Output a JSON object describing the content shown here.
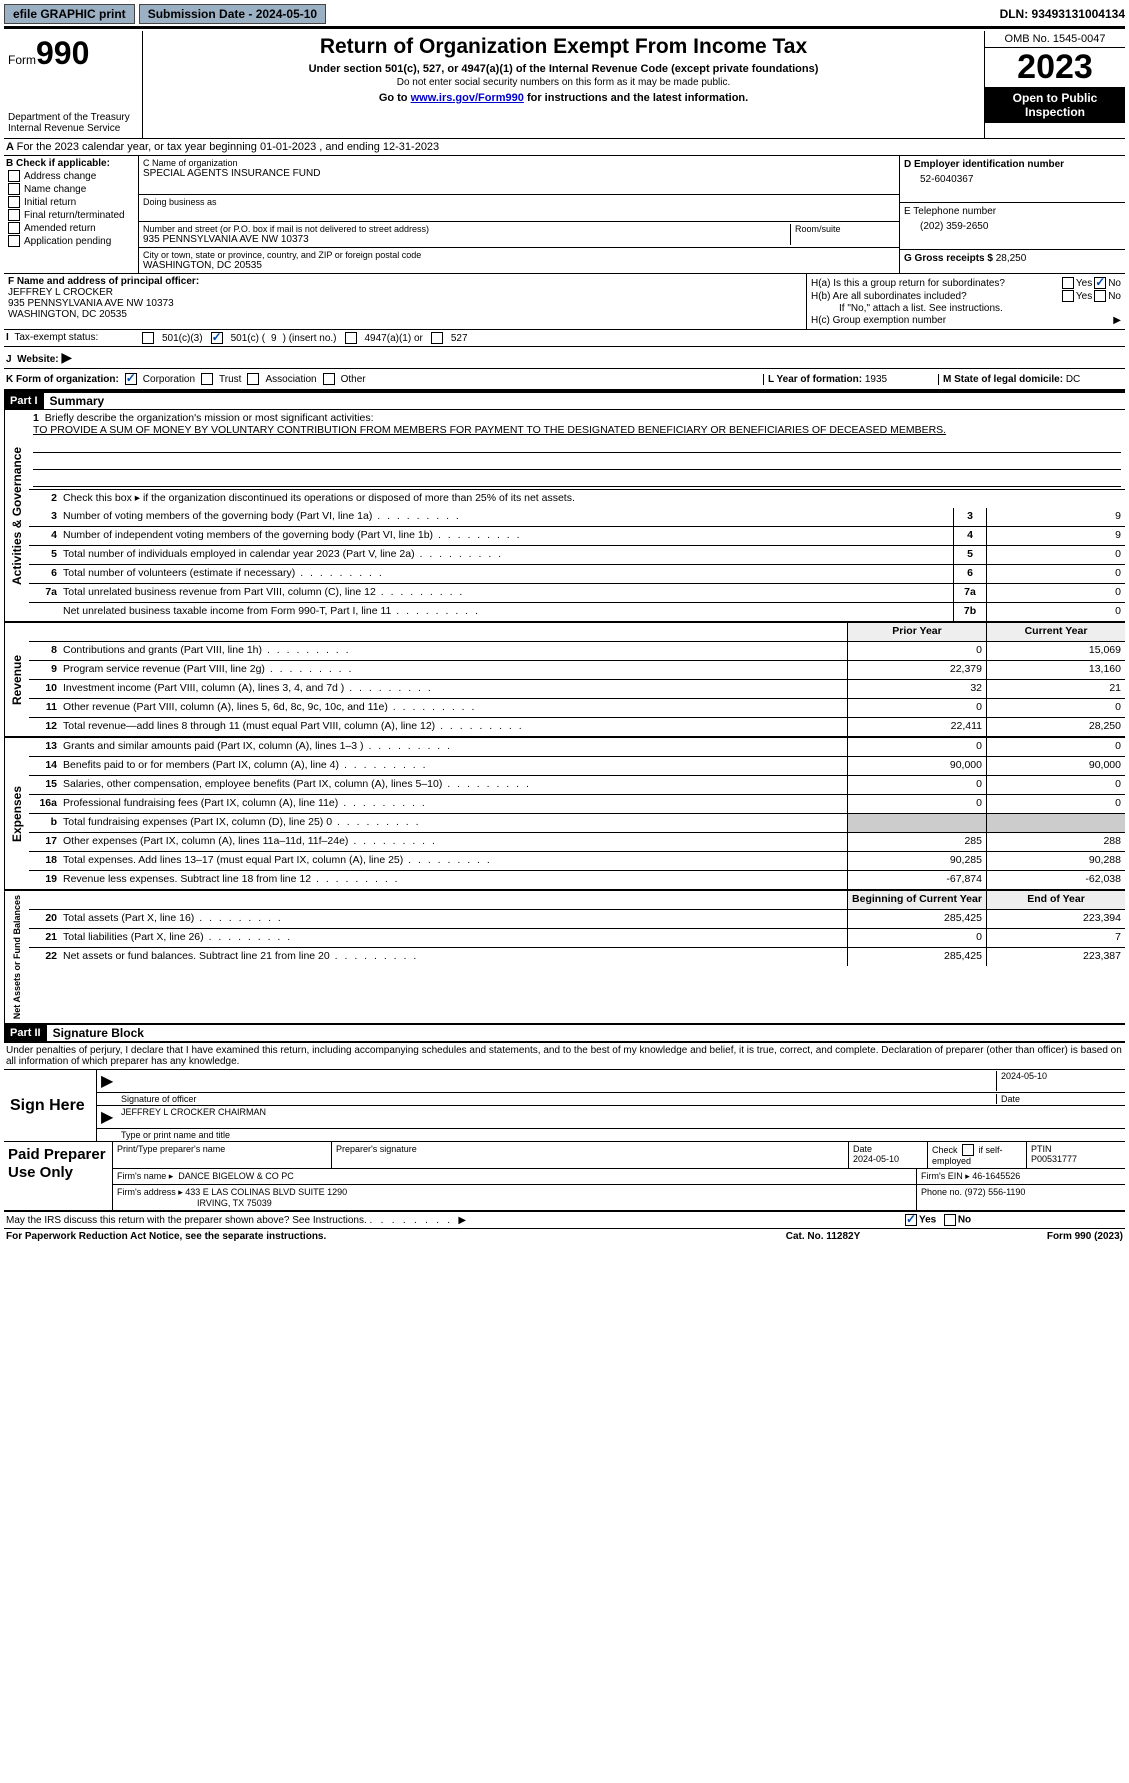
{
  "topbar": {
    "efile": "efile GRAPHIC print",
    "submission": "Submission Date - 2024-05-10",
    "dln": "DLN: 93493131004134"
  },
  "header": {
    "form_label": "Form",
    "form_num": "990",
    "dept": "Department of the Treasury Internal Revenue Service",
    "title": "Return of Organization Exempt From Income Tax",
    "sub1": "Under section 501(c), 527, or 4947(a)(1) of the Internal Revenue Code (except private foundations)",
    "sub2": "Do not enter social security numbers on this form as it may be made public.",
    "sub3_pre": "Go to ",
    "sub3_link": "www.irs.gov/Form990",
    "sub3_post": " for instructions and the latest information.",
    "omb": "OMB No. 1545-0047",
    "year": "2023",
    "open": "Open to Public Inspection"
  },
  "lineA": "For the 2023 calendar year, or tax year beginning 01-01-2023   , and ending 12-31-2023",
  "boxB": {
    "title": "B Check if applicable:",
    "items": [
      "Address change",
      "Name change",
      "Initial return",
      "Final return/terminated",
      "Amended return",
      "Application pending"
    ]
  },
  "boxC": {
    "name_label": "C Name of organization",
    "name": "SPECIAL AGENTS INSURANCE FUND",
    "dba_label": "Doing business as",
    "street_label": "Number and street (or P.O. box if mail is not delivered to street address)",
    "street": "935 PENNSYLVANIA AVE NW 10373",
    "room_label": "Room/suite",
    "city_label": "City or town, state or province, country, and ZIP or foreign postal code",
    "city": "WASHINGTON, DC  20535"
  },
  "boxD": {
    "ein_label": "D Employer identification number",
    "ein": "52-6040367",
    "phone_label": "E Telephone number",
    "phone": "(202) 359-2650",
    "gross_label": "G Gross receipts $",
    "gross": "28,250"
  },
  "boxF": {
    "label": "F  Name and address of principal officer:",
    "name": "JEFFREY L CROCKER",
    "addr1": "935 PENNSYLVANIA AVE NW 10373",
    "addr2": "WASHINGTON, DC  20535"
  },
  "boxH": {
    "a_label": "H(a)  Is this a group return for subordinates?",
    "b_label": "H(b)  Are all subordinates included?",
    "b_note": "If \"No,\" attach a list. See instructions.",
    "c_label": "H(c)  Group exemption number ",
    "yes": "Yes",
    "no": "No"
  },
  "rowI": {
    "label": "Tax-exempt status:",
    "opt1": "501(c)(3)",
    "opt2_pre": "501(c) (",
    "opt2_val": "9",
    "opt2_post": ") (insert no.)",
    "opt3": "4947(a)(1) or",
    "opt4": "527"
  },
  "rowJ": {
    "label": "Website: ",
    "arrow": "▶"
  },
  "rowK": {
    "label": "K Form of organization:",
    "opts": [
      "Corporation",
      "Trust",
      "Association",
      "Other"
    ],
    "l_label": "L Year of formation: ",
    "l_val": "1935",
    "m_label": "M State of legal domicile: ",
    "m_val": "DC"
  },
  "part1": {
    "header": "Part I",
    "title": "Summary"
  },
  "mission": {
    "label": "Briefly describe the organization's mission or most significant activities:",
    "text": "TO PROVIDE A SUM OF MONEY BY VOLUNTARY CONTRIBUTION FROM MEMBERS FOR PAYMENT TO THE DESIGNATED BENEFICIARY OR BENEFICIARIES OF DECEASED MEMBERS."
  },
  "gov": {
    "side": "Activities & Governance",
    "line2": "Check this box ▸      if the organization discontinued its operations or disposed of more than 25% of its net assets.",
    "rows": [
      {
        "n": "3",
        "d": "Number of voting members of the governing body (Part VI, line 1a)",
        "b": "3",
        "v": "9"
      },
      {
        "n": "4",
        "d": "Number of independent voting members of the governing body (Part VI, line 1b)",
        "b": "4",
        "v": "9"
      },
      {
        "n": "5",
        "d": "Total number of individuals employed in calendar year 2023 (Part V, line 2a)",
        "b": "5",
        "v": "0"
      },
      {
        "n": "6",
        "d": "Total number of volunteers (estimate if necessary)",
        "b": "6",
        "v": "0"
      },
      {
        "n": "7a",
        "d": "Total unrelated business revenue from Part VIII, column (C), line 12",
        "b": "7a",
        "v": "0"
      },
      {
        "n": "",
        "d": "Net unrelated business taxable income from Form 990-T, Part I, line 11",
        "b": "7b",
        "v": "0"
      }
    ]
  },
  "rev": {
    "side": "Revenue",
    "head_prior": "Prior Year",
    "head_curr": "Current Year",
    "rows": [
      {
        "n": "8",
        "d": "Contributions and grants (Part VIII, line 1h)",
        "p": "0",
        "c": "15,069"
      },
      {
        "n": "9",
        "d": "Program service revenue (Part VIII, line 2g)",
        "p": "22,379",
        "c": "13,160"
      },
      {
        "n": "10",
        "d": "Investment income (Part VIII, column (A), lines 3, 4, and 7d )",
        "p": "32",
        "c": "21"
      },
      {
        "n": "11",
        "d": "Other revenue (Part VIII, column (A), lines 5, 6d, 8c, 9c, 10c, and 11e)",
        "p": "0",
        "c": "0"
      },
      {
        "n": "12",
        "d": "Total revenue—add lines 8 through 11 (must equal Part VIII, column (A), line 12)",
        "p": "22,411",
        "c": "28,250"
      }
    ]
  },
  "exp": {
    "side": "Expenses",
    "rows": [
      {
        "n": "13",
        "d": "Grants and similar amounts paid (Part IX, column (A), lines 1–3 )",
        "p": "0",
        "c": "0"
      },
      {
        "n": "14",
        "d": "Benefits paid to or for members (Part IX, column (A), line 4)",
        "p": "90,000",
        "c": "90,000"
      },
      {
        "n": "15",
        "d": "Salaries, other compensation, employee benefits (Part IX, column (A), lines 5–10)",
        "p": "0",
        "c": "0"
      },
      {
        "n": "16a",
        "d": "Professional fundraising fees (Part IX, column (A), line 11e)",
        "p": "0",
        "c": "0"
      },
      {
        "n": "b",
        "d": "Total fundraising expenses (Part IX, column (D), line 25) 0",
        "p": "",
        "c": "",
        "shaded": true
      },
      {
        "n": "17",
        "d": "Other expenses (Part IX, column (A), lines 11a–11d, 11f–24e)",
        "p": "285",
        "c": "288"
      },
      {
        "n": "18",
        "d": "Total expenses. Add lines 13–17 (must equal Part IX, column (A), line 25)",
        "p": "90,285",
        "c": "90,288"
      },
      {
        "n": "19",
        "d": "Revenue less expenses. Subtract line 18 from line 12",
        "p": "-67,874",
        "c": "-62,038"
      }
    ]
  },
  "net": {
    "side": "Net Assets or Fund Balances",
    "head_prior": "Beginning of Current Year",
    "head_curr": "End of Year",
    "rows": [
      {
        "n": "20",
        "d": "Total assets (Part X, line 16)",
        "p": "285,425",
        "c": "223,394"
      },
      {
        "n": "21",
        "d": "Total liabilities (Part X, line 26)",
        "p": "0",
        "c": "7"
      },
      {
        "n": "22",
        "d": "Net assets or fund balances. Subtract line 21 from line 20",
        "p": "285,425",
        "c": "223,387"
      }
    ]
  },
  "part2": {
    "header": "Part II",
    "title": "Signature Block"
  },
  "sig": {
    "disclaimer": "Under penalties of perjury, I declare that I have examined this return, including accompanying schedules and statements, and to the best of my knowledge and belief, it is true, correct, and complete. Declaration of preparer (other than officer) is based on all information of which preparer has any knowledge.",
    "sign_here": "Sign Here",
    "sig_officer_label": "Signature of officer",
    "date_label": "Date",
    "date_val": "2024-05-10",
    "officer": "JEFFREY L CROCKER  CHAIRMAN",
    "type_label": "Type or print name and title"
  },
  "paid": {
    "title": "Paid Preparer Use Only",
    "print_label": "Print/Type preparer's name",
    "sig_label": "Preparer's signature",
    "date_label": "Date",
    "date_val": "2024-05-10",
    "check_label": "Check        if self-employed",
    "ptin_label": "PTIN",
    "ptin": "P00531777",
    "firm_name_label": "Firm's name    ▸",
    "firm_name": "DANCE BIGELOW & CO PC",
    "firm_ein_label": "Firm's EIN ▸",
    "firm_ein": "46-1645526",
    "firm_addr_label": "Firm's address ▸",
    "firm_addr1": "433 E LAS COLINAS BLVD SUITE 1290",
    "firm_addr2": "IRVING, TX  75039",
    "phone_label": "Phone no.",
    "phone": "(972) 556-1190"
  },
  "footer": {
    "discuss": "May the IRS discuss this return with the preparer shown above? See Instructions.",
    "yes": "Yes",
    "no": "No",
    "paperwork": "For Paperwork Reduction Act Notice, see the separate instructions.",
    "cat": "Cat. No. 11282Y",
    "form": "Form 990 (2023)"
  }
}
